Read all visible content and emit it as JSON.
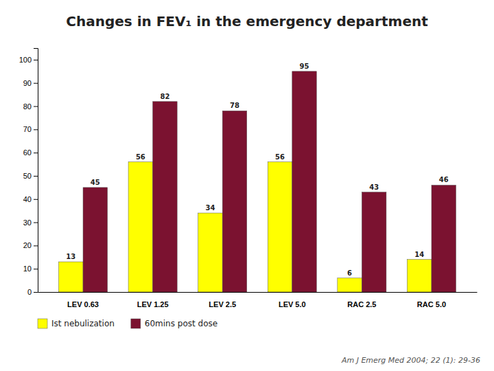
{
  "chart_data": {
    "type": "bar",
    "title": "Changes in FEV₁ in the emergency department",
    "categories": [
      "LEV 0.63",
      "LEV 1.25",
      "LEV 2.5",
      "LEV 5.0",
      "RAC 2.5",
      "RAC 5.0"
    ],
    "series": [
      {
        "name": "Ist nebulization",
        "color": "#FFFF00",
        "values": [
          13,
          56,
          34,
          56,
          6,
          14
        ]
      },
      {
        "name": "60mins post dose",
        "color": "#7B1230",
        "values": [
          45,
          82,
          78,
          95,
          43,
          46
        ]
      }
    ],
    "ylim": [
      0,
      105
    ],
    "yticks": [
      0,
      10,
      20,
      30,
      40,
      50,
      60,
      70,
      80,
      90,
      100
    ],
    "grid": false,
    "legend": "bottom",
    "data_labels": true,
    "annotations": [
      "Am J Emerg Med 2004; 22 (1): 29-36"
    ]
  }
}
